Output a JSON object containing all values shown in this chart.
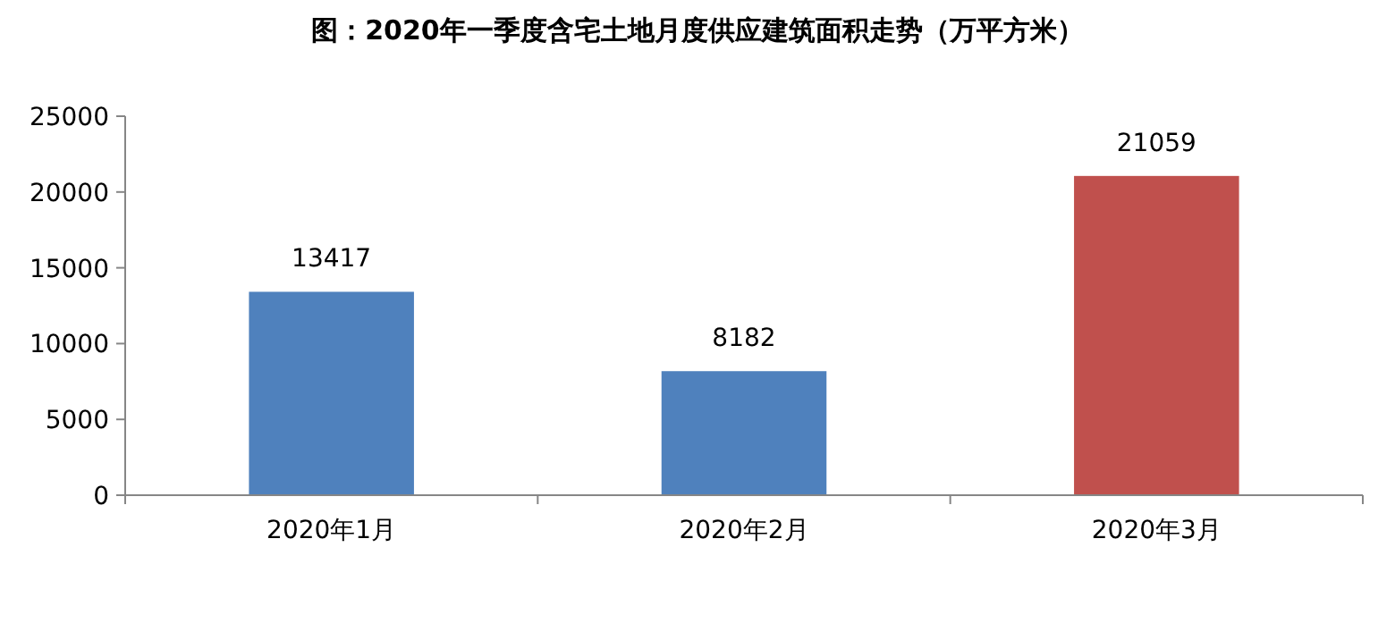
{
  "chart_data": {
    "type": "bar",
    "title": "图：2020年一季度含宅土地月度供应建筑面积走势（万平方米）",
    "categories": [
      "2020年1月",
      "2020年2月",
      "2020年3月"
    ],
    "values": [
      13417,
      8182,
      21059
    ],
    "colors": [
      "#4f81bd",
      "#4f81bd",
      "#c0504d"
    ],
    "ylim": [
      0,
      25000
    ],
    "yticks": [
      0,
      5000,
      10000,
      15000,
      20000,
      25000
    ],
    "data_labels": true,
    "grid": false
  }
}
